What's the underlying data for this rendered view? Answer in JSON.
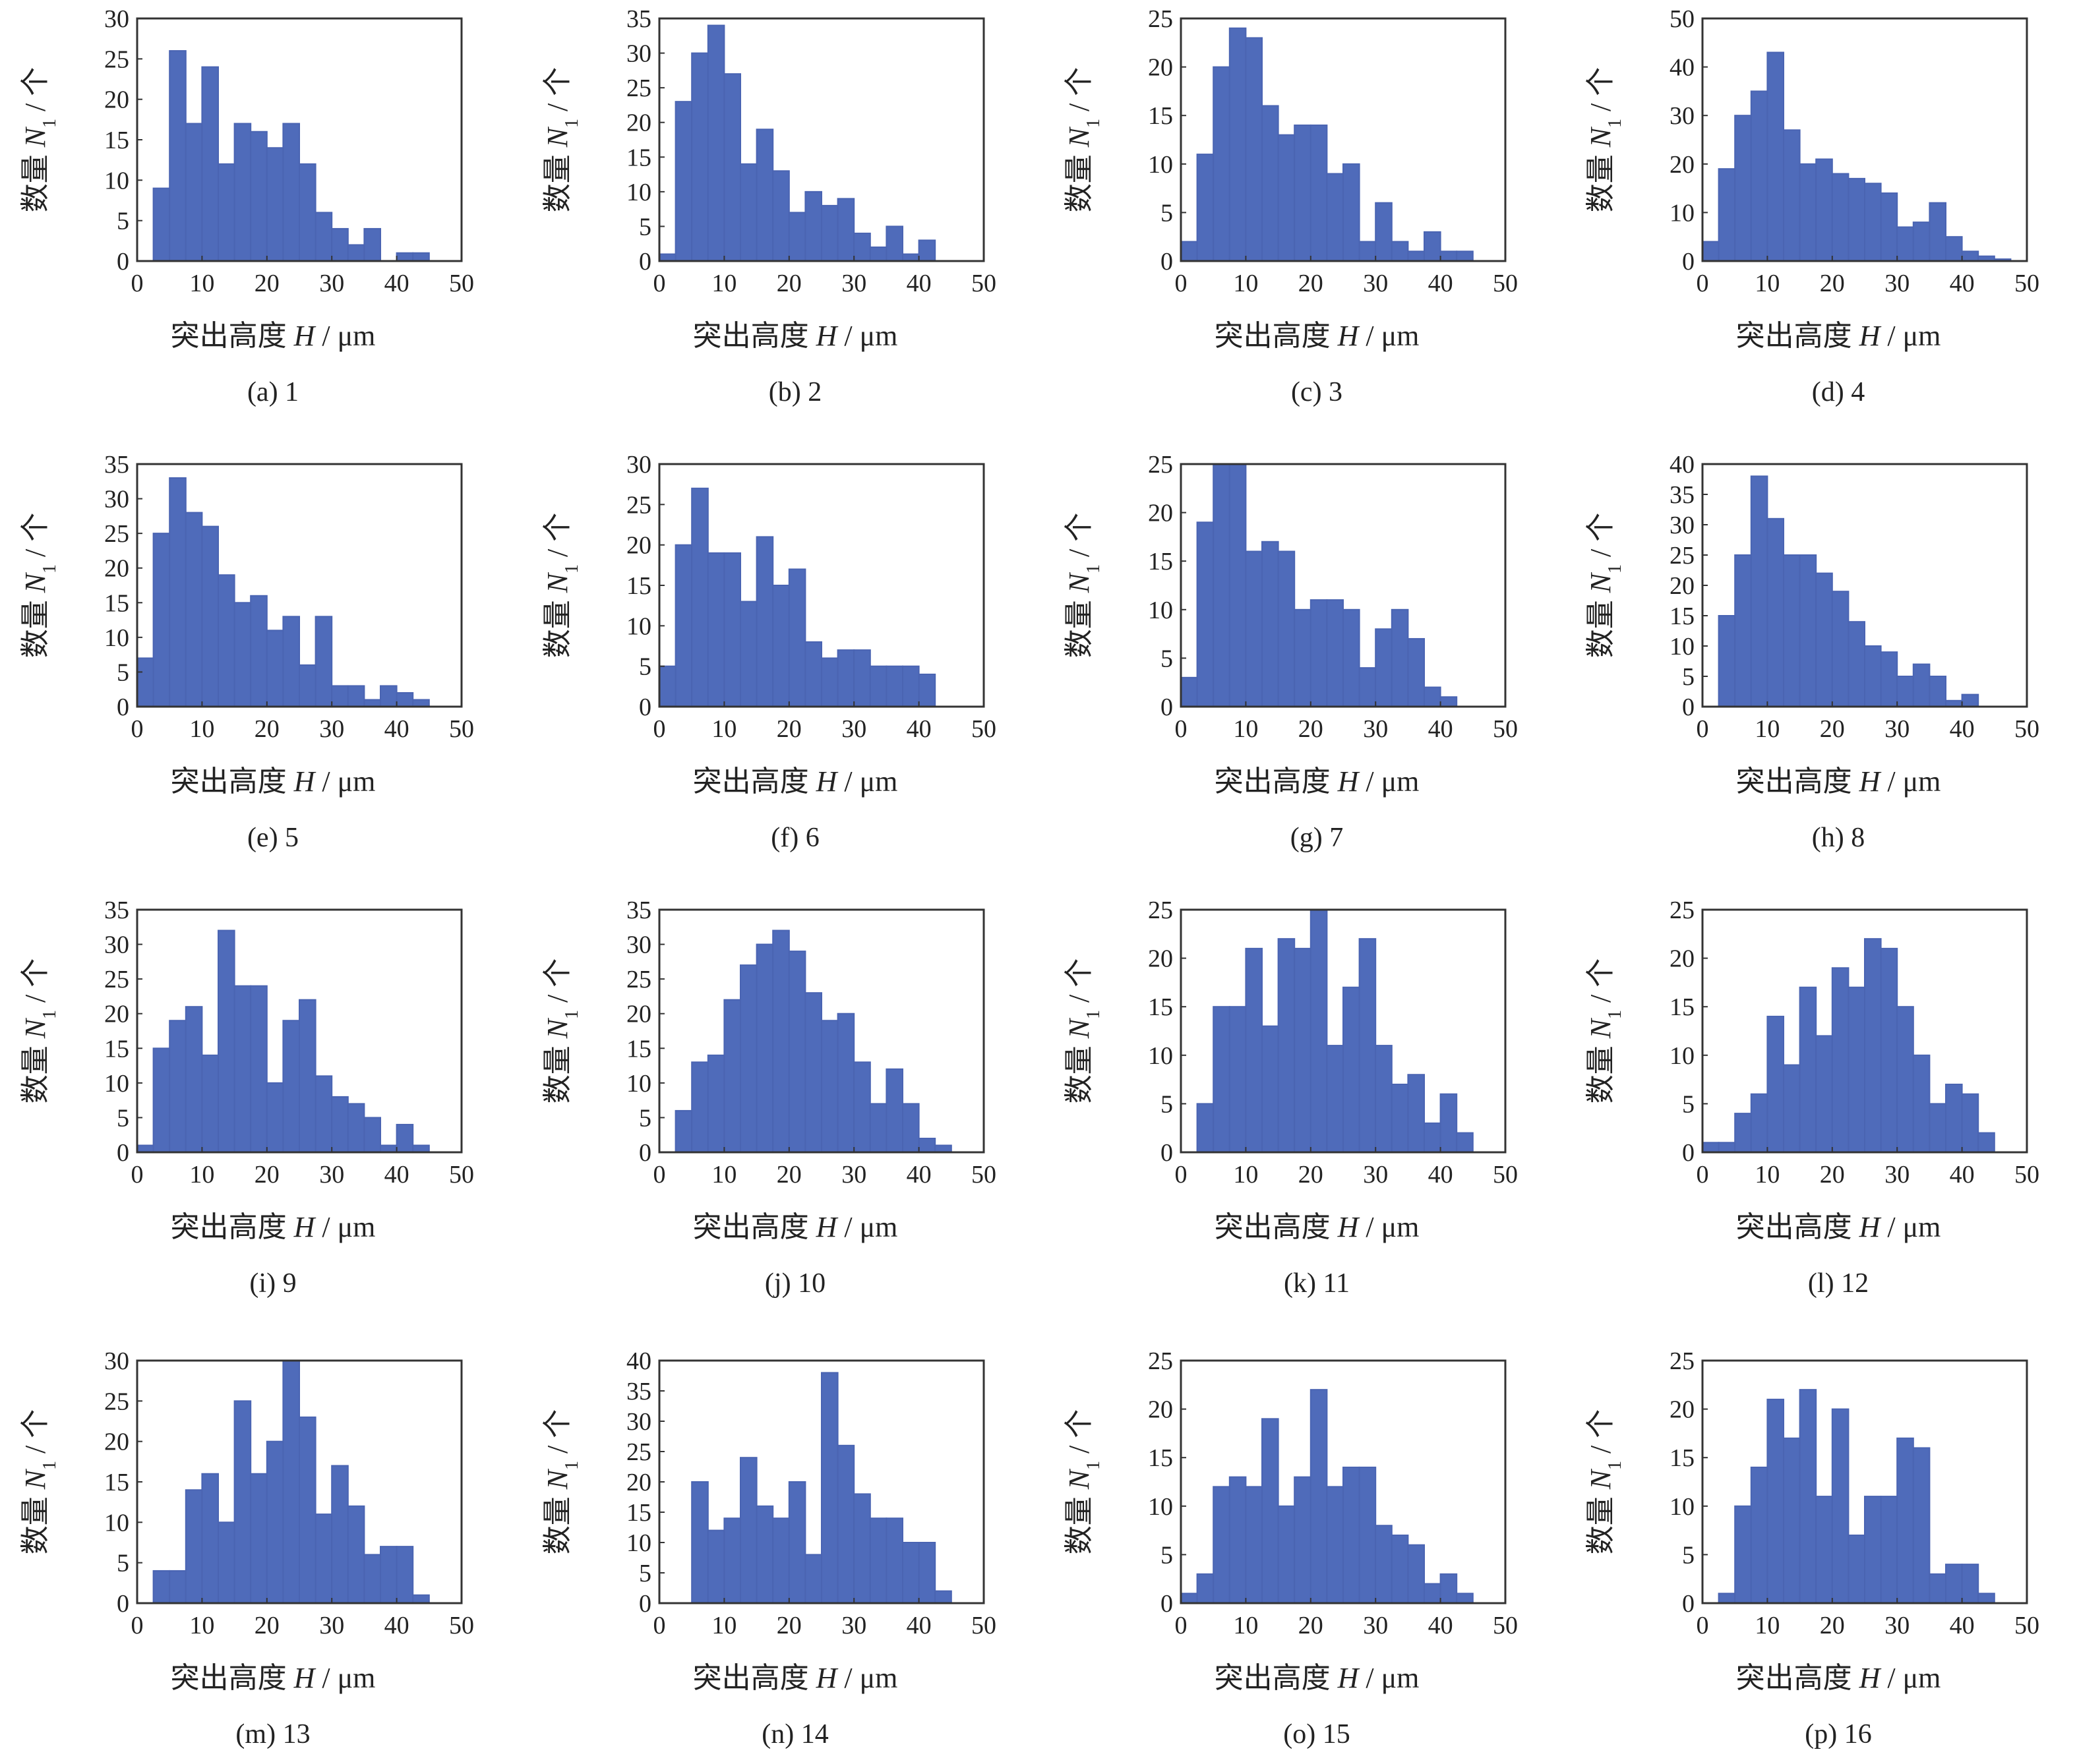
{
  "axis_labels": {
    "x_prefix": "突出高度 ",
    "x_var": "H",
    "x_unit": " / μm",
    "y_prefix": "数量 ",
    "y_var": "N",
    "y_sub": "1",
    "y_unit": " / 个"
  },
  "colors": {
    "bar_fill": "#4f6bba",
    "bar_edge": "#4a64b2",
    "frame": "#333333"
  },
  "chart_data": [
    {
      "type": "bar",
      "caption": "(a) 1",
      "bin_width": 2.5,
      "xlim": [
        0,
        50
      ],
      "ylim": [
        0,
        30
      ],
      "yticks": [
        0,
        5,
        10,
        15,
        20,
        25,
        30
      ],
      "xticks": [
        0,
        10,
        20,
        30,
        40,
        50
      ],
      "bin_starts": [
        2.5,
        5,
        7.5,
        10,
        12.5,
        15,
        17.5,
        20,
        22.5,
        25,
        27.5,
        30,
        32.5,
        35,
        37.5,
        40,
        42.5
      ],
      "values": [
        9,
        26,
        17,
        24,
        12,
        17,
        16,
        14,
        17,
        12,
        6,
        4,
        2,
        4,
        0,
        1,
        1
      ]
    },
    {
      "type": "bar",
      "caption": "(b) 2",
      "bin_width": 2.5,
      "xlim": [
        0,
        50
      ],
      "ylim": [
        0,
        35
      ],
      "yticks": [
        0,
        5,
        10,
        15,
        20,
        25,
        30,
        35
      ],
      "xticks": [
        0,
        10,
        20,
        30,
        40,
        50
      ],
      "bin_starts": [
        0,
        2.5,
        5,
        7.5,
        10,
        12.5,
        15,
        17.5,
        20,
        22.5,
        25,
        27.5,
        30,
        32.5,
        35,
        37.5,
        40
      ],
      "values": [
        1,
        23,
        30,
        34,
        27,
        14,
        19,
        13,
        7,
        10,
        8,
        9,
        4,
        2,
        5,
        1,
        3
      ]
    },
    {
      "type": "bar",
      "caption": "(c) 3",
      "bin_width": 2.5,
      "xlim": [
        0,
        50
      ],
      "ylim": [
        0,
        25
      ],
      "yticks": [
        0,
        5,
        10,
        15,
        20,
        25
      ],
      "xticks": [
        0,
        10,
        20,
        30,
        40,
        50
      ],
      "bin_starts": [
        0,
        2.5,
        5,
        7.5,
        10,
        12.5,
        15,
        17.5,
        20,
        22.5,
        25,
        27.5,
        30,
        32.5,
        35,
        37.5,
        40,
        42.5
      ],
      "values": [
        2,
        11,
        20,
        24,
        23,
        16,
        13,
        14,
        14,
        9,
        10,
        2,
        6,
        2,
        1,
        3,
        1,
        1
      ]
    },
    {
      "type": "bar",
      "caption": "(d) 4",
      "bin_width": 2.5,
      "xlim": [
        0,
        50
      ],
      "ylim": [
        0,
        50
      ],
      "yticks": [
        0,
        10,
        20,
        30,
        40,
        50
      ],
      "xticks": [
        0,
        10,
        20,
        30,
        40,
        50
      ],
      "bin_starts": [
        0,
        2.5,
        5,
        7.5,
        10,
        12.5,
        15,
        17.5,
        20,
        22.5,
        25,
        27.5,
        30,
        32.5,
        35,
        37.5,
        40,
        42.5,
        45
      ],
      "values": [
        4,
        19,
        30,
        35,
        43,
        27,
        20,
        21,
        18,
        17,
        16,
        14,
        7,
        8,
        12,
        5,
        2,
        1,
        0.4
      ]
    },
    {
      "type": "bar",
      "caption": "(e) 5",
      "bin_width": 2.5,
      "xlim": [
        0,
        50
      ],
      "ylim": [
        0,
        35
      ],
      "yticks": [
        0,
        5,
        10,
        15,
        20,
        25,
        30,
        35
      ],
      "xticks": [
        0,
        10,
        20,
        30,
        40,
        50
      ],
      "bin_starts": [
        0,
        2.5,
        5,
        7.5,
        10,
        12.5,
        15,
        17.5,
        20,
        22.5,
        25,
        27.5,
        30,
        32.5,
        35,
        37.5,
        40,
        42.5
      ],
      "values": [
        7,
        25,
        33,
        28,
        26,
        19,
        15,
        16,
        11,
        13,
        6,
        13,
        3,
        3,
        1,
        3,
        2,
        1
      ]
    },
    {
      "type": "bar",
      "caption": "(f) 6",
      "bin_width": 2.5,
      "xlim": [
        0,
        50
      ],
      "ylim": [
        0,
        30
      ],
      "yticks": [
        0,
        5,
        10,
        15,
        20,
        25,
        30
      ],
      "xticks": [
        0,
        10,
        20,
        30,
        40,
        50
      ],
      "bin_starts": [
        0,
        2.5,
        5,
        7.5,
        10,
        12.5,
        15,
        17.5,
        20,
        22.5,
        25,
        27.5,
        30,
        32.5,
        35,
        37.5,
        40
      ],
      "values": [
        5,
        20,
        27,
        19,
        19,
        13,
        21,
        15,
        17,
        8,
        6,
        7,
        7,
        5,
        5,
        5,
        4
      ]
    },
    {
      "type": "bar",
      "caption": "(g) 7",
      "bin_width": 2.5,
      "xlim": [
        0,
        50
      ],
      "ylim": [
        0,
        25
      ],
      "yticks": [
        0,
        5,
        10,
        15,
        20,
        25
      ],
      "xticks": [
        0,
        10,
        20,
        30,
        40,
        50
      ],
      "bin_starts": [
        0,
        2.5,
        5,
        7.5,
        10,
        12.5,
        15,
        17.5,
        20,
        22.5,
        25,
        27.5,
        30,
        32.5,
        35,
        37.5,
        40
      ],
      "values": [
        3,
        19,
        25,
        25,
        16,
        17,
        16,
        10,
        11,
        11,
        10,
        4,
        8,
        10,
        7,
        2,
        1
      ]
    },
    {
      "type": "bar",
      "caption": "(h) 8",
      "bin_width": 2.5,
      "xlim": [
        0,
        50
      ],
      "ylim": [
        0,
        40
      ],
      "yticks": [
        0,
        5,
        10,
        15,
        20,
        25,
        30,
        35,
        40
      ],
      "xticks": [
        0,
        10,
        20,
        30,
        40,
        50
      ],
      "bin_starts": [
        2.5,
        5,
        7.5,
        10,
        12.5,
        15,
        17.5,
        20,
        22.5,
        25,
        27.5,
        30,
        32.5,
        35,
        37.5,
        40
      ],
      "values": [
        15,
        25,
        38,
        31,
        25,
        25,
        22,
        19,
        14,
        10,
        9,
        5,
        7,
        5,
        1,
        2
      ]
    },
    {
      "type": "bar",
      "caption": "(i) 9",
      "bin_width": 2.5,
      "xlim": [
        0,
        50
      ],
      "ylim": [
        0,
        35
      ],
      "yticks": [
        0,
        5,
        10,
        15,
        20,
        25,
        30,
        35
      ],
      "xticks": [
        0,
        10,
        20,
        30,
        40,
        50
      ],
      "bin_starts": [
        0,
        2.5,
        5,
        7.5,
        10,
        12.5,
        15,
        17.5,
        20,
        22.5,
        25,
        27.5,
        30,
        32.5,
        35,
        37.5,
        40,
        42.5
      ],
      "values": [
        1,
        15,
        19,
        21,
        14,
        32,
        24,
        24,
        10,
        19,
        22,
        11,
        8,
        7,
        5,
        1,
        4,
        1
      ]
    },
    {
      "type": "bar",
      "caption": "(j) 10",
      "bin_width": 2.5,
      "xlim": [
        0,
        50
      ],
      "ylim": [
        0,
        35
      ],
      "yticks": [
        0,
        5,
        10,
        15,
        20,
        25,
        30,
        35
      ],
      "xticks": [
        0,
        10,
        20,
        30,
        40,
        50
      ],
      "bin_starts": [
        2.5,
        5,
        7.5,
        10,
        12.5,
        15,
        17.5,
        20,
        22.5,
        25,
        27.5,
        30,
        32.5,
        35,
        37.5,
        40,
        42.5
      ],
      "values": [
        6,
        13,
        14,
        22,
        27,
        30,
        32,
        29,
        23,
        19,
        20,
        13,
        7,
        12,
        7,
        2,
        1
      ]
    },
    {
      "type": "bar",
      "caption": "(k) 11",
      "bin_width": 2.5,
      "xlim": [
        0,
        50
      ],
      "ylim": [
        0,
        25
      ],
      "yticks": [
        0,
        5,
        10,
        15,
        20,
        25
      ],
      "xticks": [
        0,
        10,
        20,
        30,
        40,
        50
      ],
      "bin_starts": [
        2.5,
        5,
        7.5,
        10,
        12.5,
        15,
        17.5,
        20,
        22.5,
        25,
        27.5,
        30,
        32.5,
        35,
        37.5,
        40,
        42.5
      ],
      "values": [
        5,
        15,
        15,
        21,
        13,
        22,
        21,
        25,
        11,
        17,
        22,
        11,
        7,
        8,
        3,
        6,
        2
      ]
    },
    {
      "type": "bar",
      "caption": "(l) 12",
      "bin_width": 2.5,
      "xlim": [
        0,
        50
      ],
      "ylim": [
        0,
        25
      ],
      "yticks": [
        0,
        5,
        10,
        15,
        20,
        25
      ],
      "xticks": [
        0,
        10,
        20,
        30,
        40,
        50
      ],
      "bin_starts": [
        0,
        2.5,
        5,
        7.5,
        10,
        12.5,
        15,
        17.5,
        20,
        22.5,
        25,
        27.5,
        30,
        32.5,
        35,
        37.5,
        40,
        42.5
      ],
      "values": [
        1,
        1,
        4,
        6,
        14,
        9,
        17,
        12,
        19,
        17,
        22,
        21,
        15,
        10,
        5,
        7,
        6,
        2
      ]
    },
    {
      "type": "bar",
      "caption": "(m) 13",
      "bin_width": 2.5,
      "xlim": [
        0,
        50
      ],
      "ylim": [
        0,
        30
      ],
      "yticks": [
        0,
        5,
        10,
        15,
        20,
        25,
        30
      ],
      "xticks": [
        0,
        10,
        20,
        30,
        40,
        50
      ],
      "bin_starts": [
        2.5,
        5,
        7.5,
        10,
        12.5,
        15,
        17.5,
        20,
        22.5,
        25,
        27.5,
        30,
        32.5,
        35,
        37.5,
        40,
        42.5
      ],
      "values": [
        4,
        4,
        14,
        16,
        10,
        25,
        16,
        20,
        30,
        23,
        11,
        17,
        12,
        6,
        7,
        7,
        1
      ]
    },
    {
      "type": "bar",
      "caption": "(n) 14",
      "bin_width": 2.5,
      "xlim": [
        0,
        50
      ],
      "ylim": [
        0,
        40
      ],
      "yticks": [
        0,
        5,
        10,
        15,
        20,
        25,
        30,
        35,
        40
      ],
      "xticks": [
        0,
        10,
        20,
        30,
        40,
        50
      ],
      "bin_starts": [
        5,
        7.5,
        10,
        12.5,
        15,
        17.5,
        20,
        22.5,
        25,
        27.5,
        30,
        32.5,
        35,
        37.5,
        40,
        42.5
      ],
      "values": [
        20,
        12,
        14,
        24,
        16,
        14,
        20,
        8,
        38,
        26,
        18,
        14,
        14,
        10,
        10,
        2
      ]
    },
    {
      "type": "bar",
      "caption": "(o) 15",
      "bin_width": 2.5,
      "xlim": [
        0,
        50
      ],
      "ylim": [
        0,
        25
      ],
      "yticks": [
        0,
        5,
        10,
        15,
        20,
        25
      ],
      "xticks": [
        0,
        10,
        20,
        30,
        40,
        50
      ],
      "bin_starts": [
        0,
        2.5,
        5,
        7.5,
        10,
        12.5,
        15,
        17.5,
        20,
        22.5,
        25,
        27.5,
        30,
        32.5,
        35,
        37.5,
        40,
        42.5
      ],
      "values": [
        1,
        3,
        12,
        13,
        12,
        19,
        10,
        13,
        22,
        12,
        14,
        14,
        8,
        7,
        6,
        2,
        3,
        1
      ]
    },
    {
      "type": "bar",
      "caption": "(p) 16",
      "bin_width": 2.5,
      "xlim": [
        0,
        50
      ],
      "ylim": [
        0,
        25
      ],
      "yticks": [
        0,
        5,
        10,
        15,
        20,
        25
      ],
      "xticks": [
        0,
        10,
        20,
        30,
        40,
        50
      ],
      "bin_starts": [
        2.5,
        5,
        7.5,
        10,
        12.5,
        15,
        17.5,
        20,
        22.5,
        25,
        27.5,
        30,
        32.5,
        35,
        37.5,
        40,
        42.5
      ],
      "values": [
        1,
        10,
        14,
        21,
        17,
        22,
        11,
        20,
        7,
        11,
        11,
        17,
        16,
        3,
        4,
        4,
        1
      ]
    }
  ]
}
